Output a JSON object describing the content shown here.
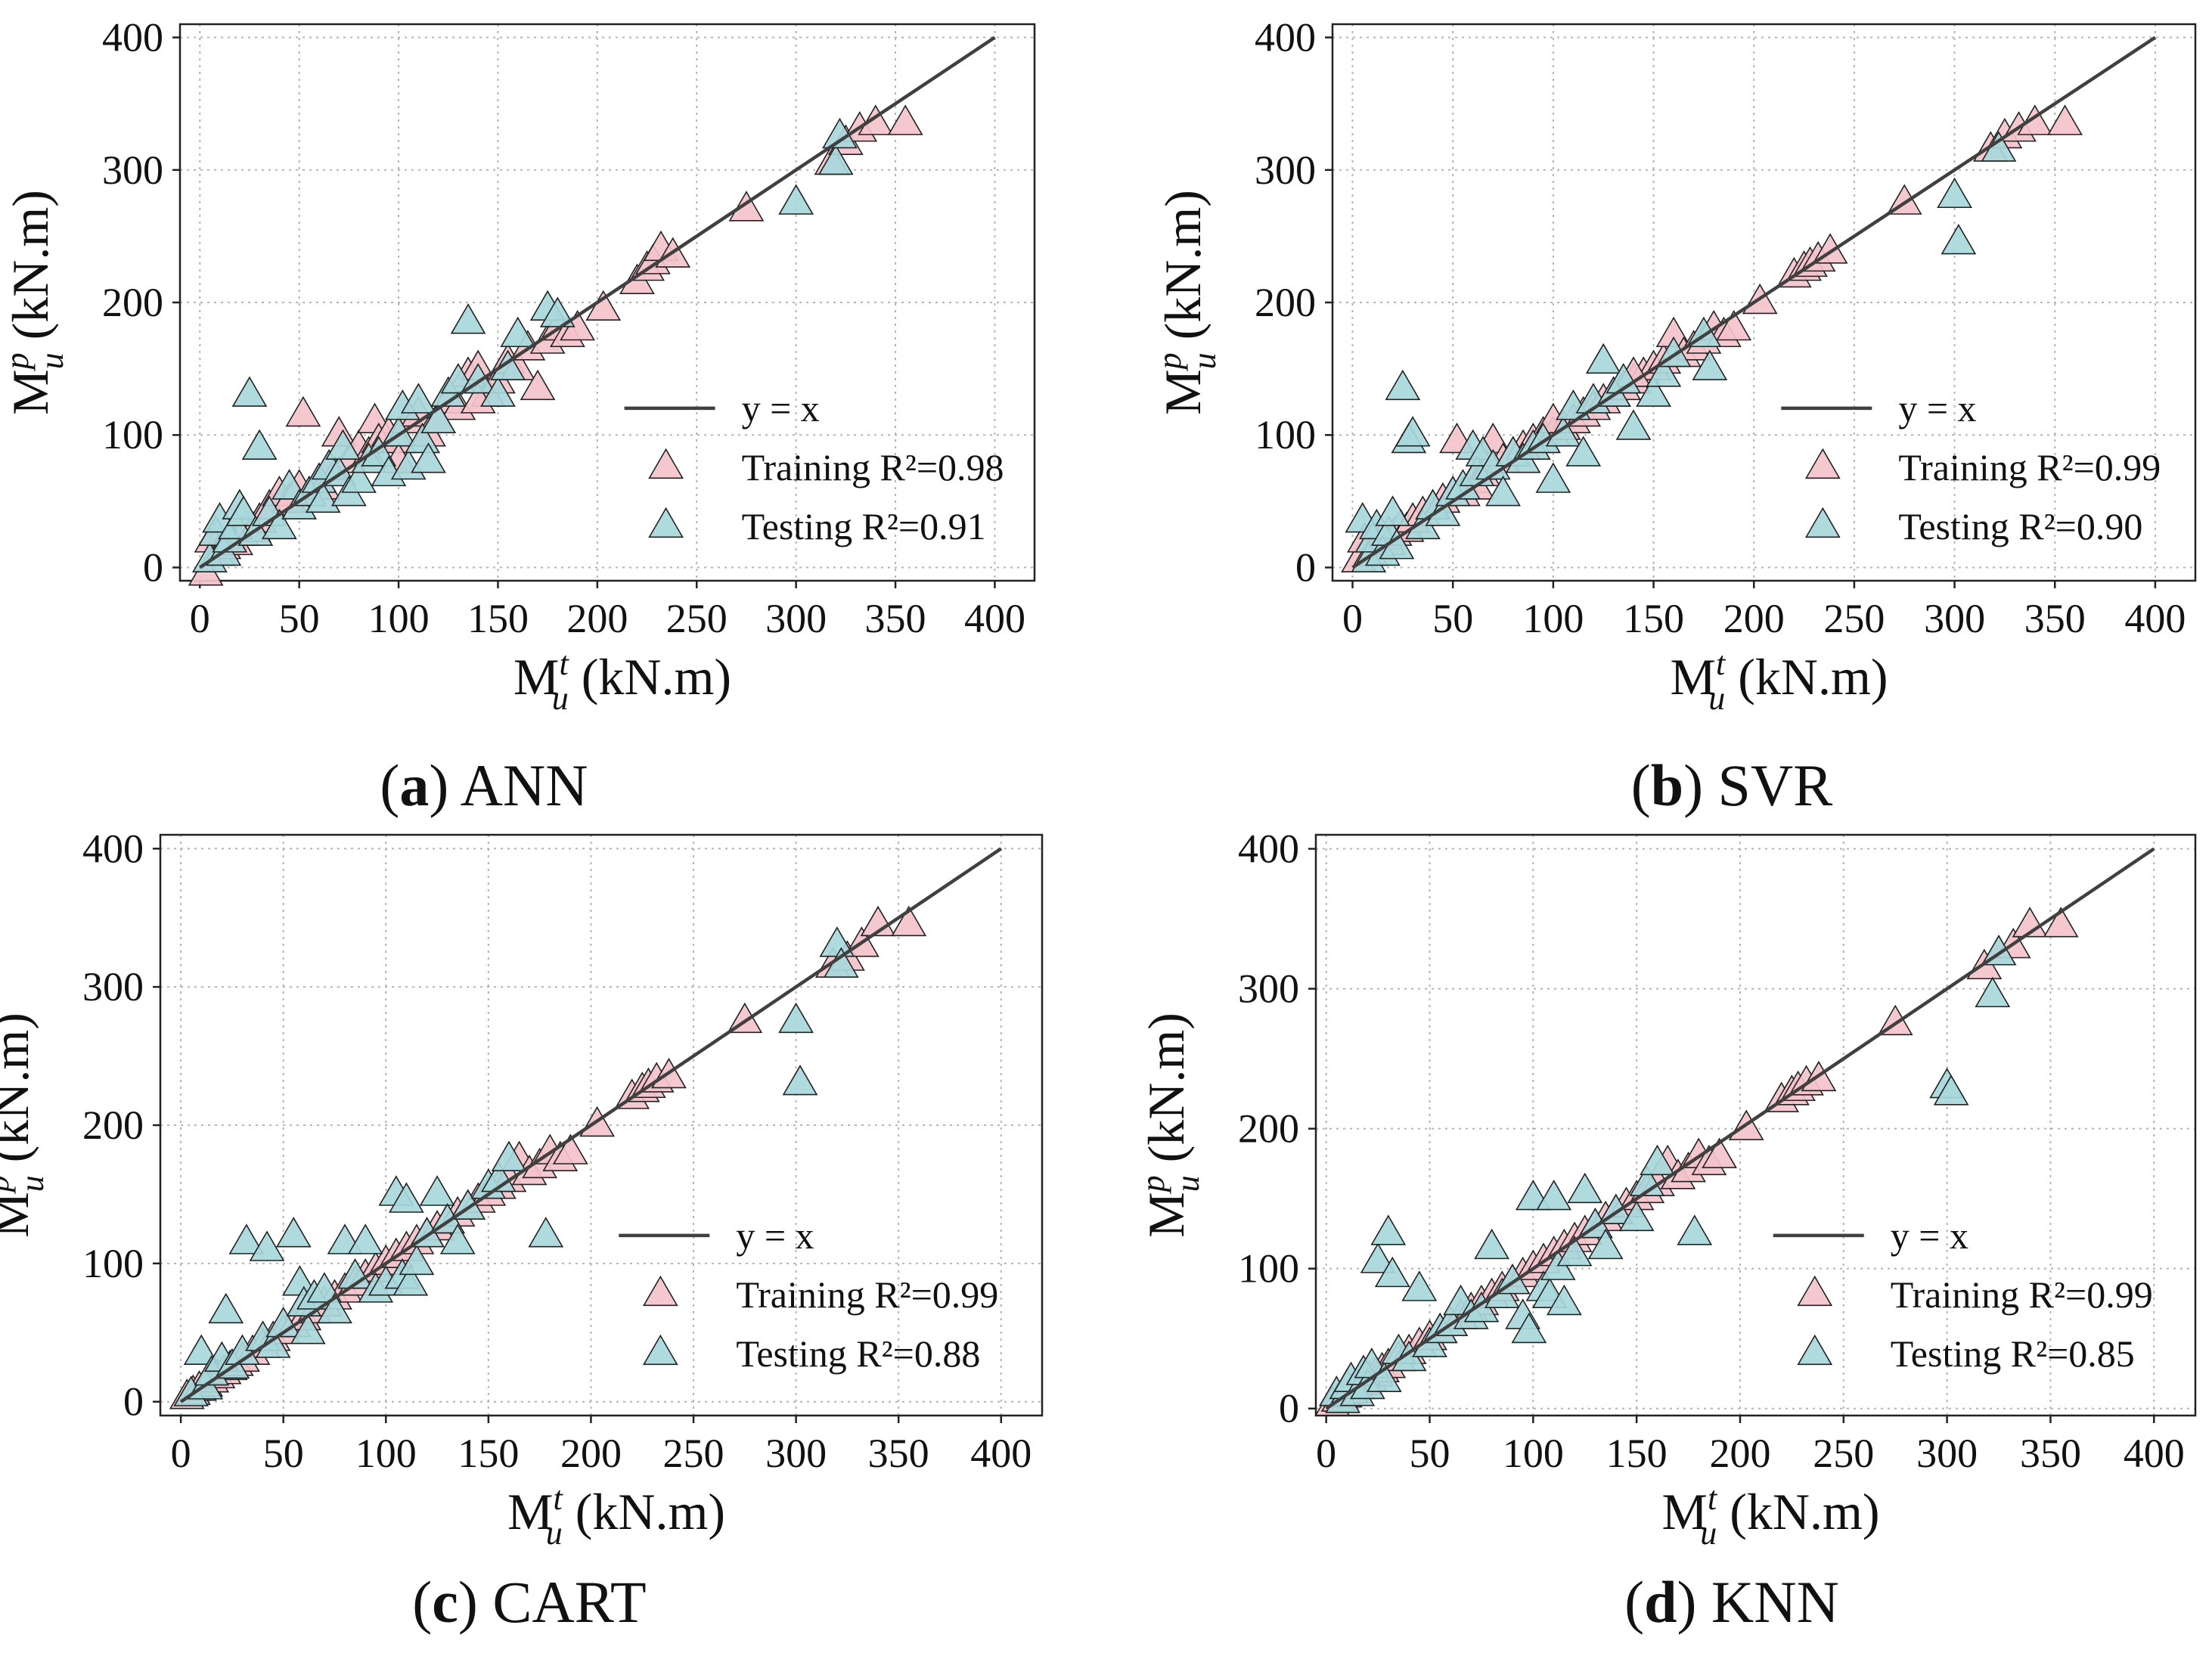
{
  "colors": {
    "training_fill": "#f4c2cb",
    "testing_fill": "#a8d8dc",
    "marker_stroke": "#222222",
    "line": "#404040",
    "grid": "#b4b4b4",
    "frame": "#222222"
  },
  "chart_data": [
    {
      "type": "scatter",
      "caption": {
        "letter": "a",
        "text": " ANN"
      },
      "xlabel": {
        "base": "M",
        "sup": "t",
        "sub": "u",
        "unit": " (kN.m)"
      },
      "ylabel": {
        "base": "M",
        "sup": "p",
        "sub": "u",
        "unit": " (kN.m)"
      },
      "xlim": [
        -10,
        420
      ],
      "ylim": [
        -10,
        410
      ],
      "xticks": [
        0,
        50,
        100,
        150,
        200,
        250,
        300,
        350,
        400
      ],
      "yticks": [
        0,
        100,
        200,
        300,
        400
      ],
      "grid": true,
      "legend_position": "center-right",
      "reference_line": {
        "label": "y = x",
        "x": [
          0,
          400
        ],
        "y": [
          0,
          400
        ]
      },
      "series": [
        {
          "name": "Training R²=0.98",
          "marker": "triangle",
          "x": [
            3,
            6,
            9,
            12,
            15,
            18,
            21,
            24,
            27,
            30,
            35,
            40,
            45,
            50,
            52,
            55,
            60,
            62,
            65,
            68,
            70,
            75,
            80,
            85,
            88,
            90,
            95,
            100,
            105,
            110,
            115,
            120,
            125,
            130,
            135,
            140,
            145,
            150,
            155,
            160,
            165,
            170,
            175,
            180,
            185,
            190,
            203,
            220,
            225,
            228,
            232,
            238,
            275,
            318,
            325,
            332,
            340,
            355,
            100,
            140,
            120
          ],
          "y": [
            -5,
            20,
            10,
            15,
            22,
            18,
            25,
            30,
            28,
            35,
            45,
            55,
            50,
            60,
            115,
            55,
            65,
            60,
            75,
            70,
            100,
            80,
            90,
            85,
            110,
            95,
            100,
            95,
            110,
            115,
            100,
            110,
            125,
            120,
            145,
            150,
            130,
            140,
            155,
            150,
            165,
            135,
            170,
            180,
            175,
            180,
            195,
            215,
            225,
            230,
            240,
            235,
            270,
            305,
            320,
            330,
            335,
            335,
            80,
            125,
            110
          ]
        },
        {
          "name": "Testing R²=0.91",
          "marker": "triangle",
          "x": [
            5,
            8,
            10,
            12,
            15,
            18,
            20,
            22,
            25,
            28,
            30,
            35,
            40,
            45,
            50,
            55,
            60,
            62,
            65,
            70,
            72,
            75,
            80,
            85,
            90,
            95,
            100,
            102,
            105,
            110,
            112,
            115,
            120,
            125,
            130,
            135,
            140,
            150,
            155,
            160,
            175,
            180,
            300,
            320,
            322
          ],
          "y": [
            5,
            25,
            35,
            10,
            20,
            30,
            45,
            40,
            130,
            25,
            90,
            40,
            30,
            60,
            45,
            55,
            65,
            50,
            75,
            70,
            90,
            55,
            65,
            80,
            85,
            70,
            100,
            120,
            75,
            125,
            95,
            80,
            110,
            130,
            140,
            185,
            140,
            130,
            150,
            175,
            195,
            190,
            275,
            305,
            325
          ]
        }
      ]
    },
    {
      "type": "scatter",
      "caption": {
        "letter": "b",
        "text": " SVR"
      },
      "xlabel": {
        "base": "M",
        "sup": "t",
        "sub": "u",
        "unit": " (kN.m)"
      },
      "ylabel": {
        "base": "M",
        "sup": "p",
        "sub": "u",
        "unit": " (kN.m)"
      },
      "xlim": [
        -10,
        420
      ],
      "ylim": [
        -10,
        410
      ],
      "xticks": [
        0,
        50,
        100,
        150,
        200,
        250,
        300,
        350,
        400
      ],
      "yticks": [
        0,
        100,
        200,
        300,
        400
      ],
      "grid": true,
      "legend_position": "center-right",
      "reference_line": {
        "label": "y = x",
        "x": [
          0,
          400
        ],
        "y": [
          0,
          400
        ]
      },
      "series": [
        {
          "name": "Training R²=0.99",
          "marker": "triangle",
          "x": [
            3,
            6,
            9,
            12,
            15,
            18,
            21,
            24,
            27,
            30,
            35,
            40,
            45,
            50,
            52,
            55,
            60,
            62,
            65,
            68,
            70,
            75,
            80,
            85,
            90,
            95,
            100,
            105,
            110,
            115,
            120,
            125,
            130,
            135,
            140,
            145,
            150,
            155,
            160,
            165,
            170,
            175,
            180,
            185,
            190,
            203,
            220,
            225,
            228,
            232,
            238,
            275,
            318,
            325,
            332,
            340,
            355,
            100,
            140
          ],
          "y": [
            5,
            20,
            10,
            15,
            22,
            18,
            25,
            30,
            28,
            35,
            40,
            45,
            50,
            55,
            95,
            55,
            65,
            60,
            70,
            75,
            95,
            80,
            85,
            90,
            95,
            100,
            100,
            105,
            110,
            115,
            120,
            125,
            130,
            135,
            140,
            145,
            150,
            155,
            175,
            160,
            165,
            170,
            180,
            175,
            180,
            200,
            220,
            225,
            228,
            232,
            238,
            275,
            315,
            325,
            330,
            335,
            335,
            110,
            145
          ]
        },
        {
          "name": "Testing R²=0.90",
          "marker": "triangle",
          "x": [
            5,
            8,
            10,
            12,
            15,
            18,
            20,
            22,
            25,
            28,
            30,
            35,
            40,
            45,
            50,
            55,
            60,
            62,
            65,
            70,
            75,
            80,
            85,
            90,
            95,
            100,
            105,
            110,
            115,
            120,
            125,
            130,
            135,
            140,
            150,
            155,
            160,
            175,
            178,
            300,
            302,
            322
          ],
          "y": [
            35,
            5,
            20,
            30,
            10,
            25,
            40,
            15,
            135,
            95,
            100,
            30,
            45,
            40,
            55,
            60,
            90,
            70,
            85,
            75,
            55,
            85,
            80,
            90,
            95,
            65,
            100,
            120,
            85,
            125,
            155,
            130,
            140,
            105,
            130,
            145,
            160,
            175,
            150,
            280,
            245,
            315
          ]
        }
      ]
    },
    {
      "type": "scatter",
      "caption": {
        "letter": "c",
        "text": " CART"
      },
      "xlabel": {
        "base": "M",
        "sup": "t",
        "sub": "u",
        "unit": " (kN.m)"
      },
      "ylabel": {
        "base": "M",
        "sup": "p",
        "sub": "u",
        "unit": " (kN.m)"
      },
      "xlim": [
        -10,
        420
      ],
      "ylim": [
        -10,
        410
      ],
      "xticks": [
        0,
        50,
        100,
        150,
        200,
        250,
        300,
        350,
        400
      ],
      "yticks": [
        0,
        100,
        200,
        300,
        400
      ],
      "grid": true,
      "legend_position": "center-right",
      "reference_line": {
        "label": "y = x",
        "x": [
          0,
          400
        ],
        "y": [
          0,
          400
        ]
      },
      "series": [
        {
          "name": "Training R²=0.99",
          "marker": "triangle",
          "x": [
            3,
            6,
            9,
            12,
            15,
            18,
            21,
            24,
            27,
            30,
            35,
            40,
            45,
            50,
            55,
            60,
            65,
            70,
            75,
            80,
            85,
            90,
            95,
            100,
            105,
            110,
            115,
            120,
            125,
            130,
            135,
            140,
            145,
            150,
            155,
            160,
            165,
            170,
            175,
            180,
            185,
            190,
            203,
            220,
            225,
            228,
            232,
            238,
            275,
            318,
            325,
            332,
            340,
            355
          ],
          "y": [
            3,
            6,
            9,
            12,
            15,
            18,
            21,
            24,
            27,
            30,
            35,
            40,
            45,
            50,
            55,
            60,
            65,
            70,
            75,
            80,
            85,
            90,
            95,
            100,
            105,
            110,
            115,
            120,
            125,
            130,
            135,
            140,
            145,
            150,
            155,
            160,
            175,
            165,
            170,
            180,
            175,
            180,
            200,
            220,
            225,
            228,
            232,
            235,
            275,
            315,
            320,
            330,
            345,
            345
          ]
        },
        {
          "name": "Testing R²=0.88",
          "marker": "triangle",
          "x": [
            5,
            10,
            12,
            15,
            20,
            22,
            25,
            30,
            32,
            40,
            42,
            45,
            50,
            55,
            58,
            60,
            62,
            65,
            70,
            75,
            80,
            85,
            90,
            95,
            100,
            105,
            108,
            110,
            112,
            115,
            120,
            125,
            130,
            135,
            140,
            150,
            155,
            160,
            178,
            300,
            302,
            320,
            322
          ],
          "y": [
            5,
            35,
            10,
            20,
            30,
            65,
            25,
            35,
            115,
            45,
            110,
            40,
            55,
            120,
            85,
            70,
            50,
            75,
            80,
            65,
            115,
            90,
            115,
            80,
            85,
            150,
            90,
            145,
            85,
            100,
            120,
            150,
            130,
            115,
            140,
            155,
            160,
            175,
            120,
            275,
            230,
            330,
            315
          ]
        }
      ]
    },
    {
      "type": "scatter",
      "caption": {
        "letter": "d",
        "text": " KNN"
      },
      "xlabel": {
        "base": "M",
        "sup": "t",
        "sub": "u",
        "unit": " (kN.m)"
      },
      "ylabel": {
        "base": "M",
        "sup": "p",
        "sub": "u",
        "unit": " (kN.m)"
      },
      "xlim": [
        -5,
        420
      ],
      "ylim": [
        -5,
        410
      ],
      "xticks": [
        0,
        50,
        100,
        150,
        200,
        250,
        300,
        350,
        400
      ],
      "yticks": [
        0,
        100,
        200,
        300,
        400
      ],
      "grid": true,
      "legend_position": "center-right",
      "reference_line": {
        "label": "y = x",
        "x": [
          0,
          400
        ],
        "y": [
          0,
          400
        ]
      },
      "series": [
        {
          "name": "Training R²=0.99",
          "marker": "triangle",
          "x": [
            3,
            6,
            9,
            12,
            15,
            18,
            21,
            24,
            27,
            30,
            35,
            40,
            45,
            50,
            55,
            60,
            65,
            70,
            75,
            80,
            85,
            90,
            95,
            100,
            105,
            110,
            115,
            120,
            125,
            130,
            135,
            140,
            145,
            150,
            155,
            160,
            165,
            170,
            175,
            180,
            185,
            190,
            203,
            220,
            225,
            228,
            232,
            238,
            275,
            318,
            325,
            332,
            340,
            355
          ],
          "y": [
            3,
            6,
            9,
            12,
            15,
            18,
            21,
            24,
            27,
            30,
            35,
            40,
            45,
            50,
            55,
            60,
            65,
            70,
            75,
            80,
            85,
            90,
            95,
            100,
            105,
            110,
            115,
            120,
            125,
            130,
            135,
            140,
            145,
            150,
            155,
            160,
            175,
            165,
            170,
            180,
            175,
            180,
            200,
            220,
            225,
            228,
            232,
            235,
            275,
            315,
            325,
            330,
            345,
            345
          ]
        },
        {
          "name": "Testing R²=0.85",
          "marker": "triangle",
          "x": [
            5,
            8,
            10,
            12,
            15,
            18,
            20,
            22,
            25,
            28,
            30,
            32,
            35,
            40,
            45,
            50,
            55,
            60,
            65,
            70,
            75,
            80,
            85,
            90,
            95,
            98,
            100,
            105,
            108,
            110,
            112,
            115,
            120,
            125,
            130,
            135,
            140,
            150,
            155,
            160,
            178,
            300,
            302,
            322,
            325
          ],
          "y": [
            10,
            5,
            15,
            20,
            10,
            25,
            15,
            30,
            105,
            20,
            125,
            95,
            40,
            35,
            85,
            45,
            55,
            60,
            75,
            65,
            70,
            115,
            80,
            90,
            65,
            55,
            150,
            85,
            80,
            150,
            100,
            75,
            110,
            155,
            130,
            115,
            140,
            135,
            160,
            175,
            125,
            230,
            225,
            295,
            325
          ]
        }
      ]
    }
  ]
}
